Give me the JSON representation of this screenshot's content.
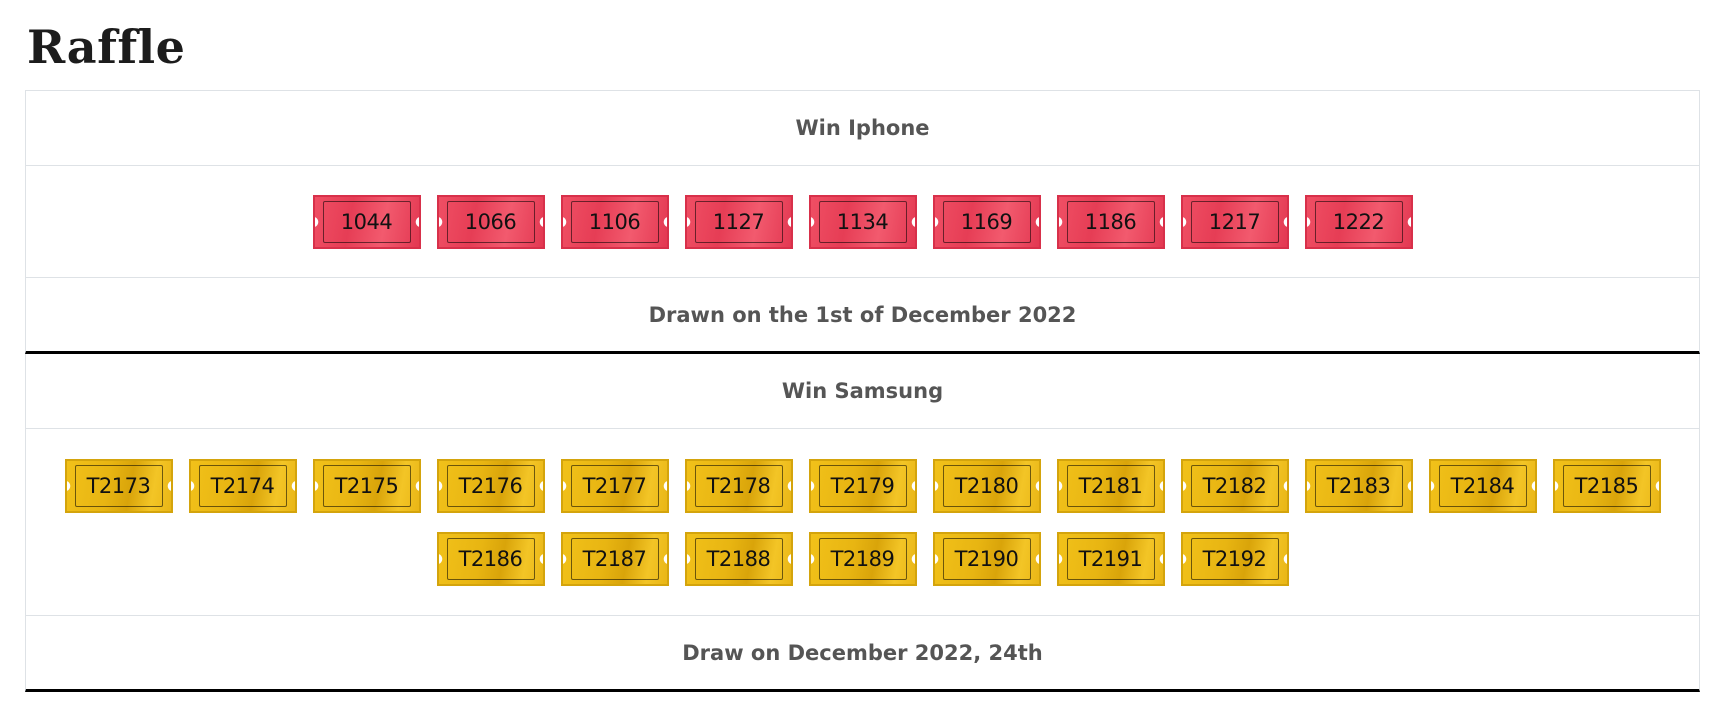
{
  "page": {
    "title": "Raffle"
  },
  "raffles": [
    {
      "title": "Win Iphone",
      "ticket_color": "#e63d55",
      "tickets": [
        "1044",
        "1066",
        "1106",
        "1127",
        "1134",
        "1169",
        "1186",
        "1217",
        "1222"
      ],
      "footer": "Drawn on the 1st of December 2022"
    },
    {
      "title": "Win Samsung",
      "ticket_color": "#e8b512",
      "tickets": [
        "T2173",
        "T2174",
        "T2175",
        "T2176",
        "T2177",
        "T2178",
        "T2179",
        "T2180",
        "T2181",
        "T2182",
        "T2183",
        "T2184",
        "T2185",
        "T2186",
        "T2187",
        "T2188",
        "T2189",
        "T2190",
        "T2191",
        "T2192"
      ],
      "footer": "Draw on December 2022, 24th"
    }
  ]
}
